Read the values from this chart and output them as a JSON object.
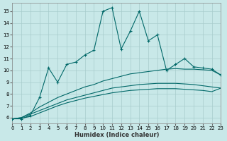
{
  "xlabel": "Humidex (Indice chaleur)",
  "xlim": [
    0,
    23
  ],
  "ylim": [
    5.5,
    15.7
  ],
  "yticks": [
    6,
    7,
    8,
    9,
    10,
    11,
    12,
    13,
    14,
    15
  ],
  "xticks": [
    0,
    1,
    2,
    3,
    4,
    5,
    6,
    7,
    8,
    9,
    10,
    11,
    12,
    13,
    14,
    15,
    16,
    17,
    18,
    19,
    20,
    21,
    22,
    23
  ],
  "bg_color": "#c8e8e8",
  "grid_color": "#a8cccc",
  "line_color": "#006868",
  "series1_y": [
    5.9,
    5.9,
    6.2,
    7.7,
    10.2,
    9.0,
    10.5,
    10.7,
    11.3,
    11.7,
    15.0,
    15.3,
    11.8,
    13.3,
    15.0,
    12.5,
    13.0,
    10.0,
    10.5,
    11.0,
    10.3,
    10.2,
    10.1,
    9.6
  ],
  "series2_y": [
    5.9,
    6.0,
    6.4,
    6.9,
    7.3,
    7.7,
    8.0,
    8.3,
    8.6,
    8.8,
    9.1,
    9.3,
    9.5,
    9.7,
    9.8,
    9.9,
    10.0,
    10.1,
    10.15,
    10.1,
    10.1,
    10.05,
    10.0,
    9.6
  ],
  "series3_y": [
    5.9,
    6.0,
    6.3,
    6.6,
    6.9,
    7.2,
    7.5,
    7.7,
    7.9,
    8.1,
    8.3,
    8.5,
    8.6,
    8.7,
    8.8,
    8.85,
    8.9,
    8.9,
    8.9,
    8.85,
    8.8,
    8.7,
    8.6,
    8.5
  ],
  "series4_y": [
    5.9,
    5.95,
    6.1,
    6.4,
    6.7,
    7.0,
    7.25,
    7.45,
    7.65,
    7.8,
    7.95,
    8.1,
    8.2,
    8.3,
    8.35,
    8.4,
    8.45,
    8.45,
    8.45,
    8.4,
    8.35,
    8.3,
    8.2,
    8.5
  ]
}
